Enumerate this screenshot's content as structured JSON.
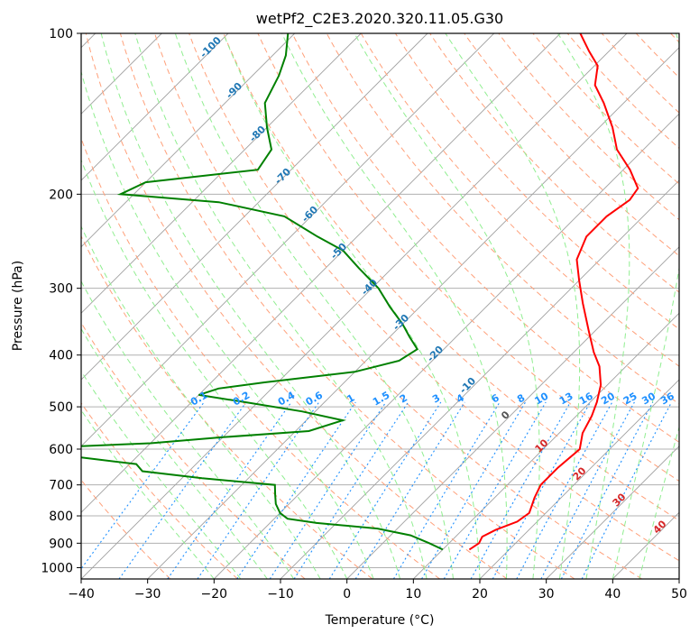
{
  "chart_data": {
    "type": "line",
    "title": "wetPf2_C2E3.2020.320.11.05.G30",
    "xlabel": "Temperature (°C)",
    "ylabel": "Pressure (hPa)",
    "xlim": [
      -40,
      50
    ],
    "ylim": [
      1050,
      100
    ],
    "y_scale": "log",
    "grid": true,
    "x_ticks": [
      -40,
      -30,
      -20,
      -10,
      0,
      10,
      20,
      30,
      40,
      50
    ],
    "y_ticks": [
      100,
      200,
      300,
      400,
      500,
      600,
      700,
      800,
      900,
      1000
    ],
    "skew": 45,
    "series": [
      {
        "color": "#ff0000",
        "points": [
          [
            925,
            14.0
          ],
          [
            900,
            14.5
          ],
          [
            875,
            14.0
          ],
          [
            850,
            15.0
          ],
          [
            820,
            17.0
          ],
          [
            790,
            17.5
          ],
          [
            740,
            16.0
          ],
          [
            700,
            15.0
          ],
          [
            650,
            15.0
          ],
          [
            600,
            15.5
          ],
          [
            560,
            13.5
          ],
          [
            520,
            12.3
          ],
          [
            490,
            11.0
          ],
          [
            455,
            9.0
          ],
          [
            420,
            6.0
          ],
          [
            395,
            3.0
          ],
          [
            360,
            -1.0
          ],
          [
            320,
            -6.0
          ],
          [
            290,
            -10.0
          ],
          [
            265,
            -13.5
          ],
          [
            240,
            -15.5
          ],
          [
            220,
            -15.5
          ],
          [
            205,
            -14.5
          ],
          [
            195,
            -15.0
          ],
          [
            180,
            -19.0
          ],
          [
            165,
            -24.0
          ],
          [
            150,
            -28.0
          ],
          [
            135,
            -33.0
          ],
          [
            125,
            -37.0
          ],
          [
            115,
            -39.5
          ],
          [
            108,
            -43.0
          ],
          [
            100,
            -47.0
          ]
        ]
      },
      {
        "color": "#008000",
        "points": [
          [
            925,
            10.0
          ],
          [
            900,
            7.0
          ],
          [
            870,
            3.0
          ],
          [
            845,
            -3.0
          ],
          [
            825,
            -13.0
          ],
          [
            810,
            -18.0
          ],
          [
            790,
            -20.0
          ],
          [
            760,
            -22.0
          ],
          [
            730,
            -23.5
          ],
          [
            700,
            -25.0
          ],
          [
            680,
            -37.0
          ],
          [
            660,
            -47.0
          ],
          [
            640,
            -49.0
          ],
          [
            600,
            -70.0
          ],
          [
            585,
            -50.0
          ],
          [
            570,
            -40.0
          ],
          [
            555,
            -28.0
          ],
          [
            530,
            -24.5
          ],
          [
            510,
            -32.0
          ],
          [
            490,
            -42.0
          ],
          [
            475,
            -50.0
          ],
          [
            462,
            -48.0
          ],
          [
            450,
            -42.0
          ],
          [
            430,
            -30.0
          ],
          [
            410,
            -25.0
          ],
          [
            390,
            -24.0
          ],
          [
            370,
            -27.0
          ],
          [
            350,
            -30.0
          ],
          [
            325,
            -34.5
          ],
          [
            300,
            -39.0
          ],
          [
            275,
            -45.0
          ],
          [
            255,
            -50.0
          ],
          [
            240,
            -56.0
          ],
          [
            220,
            -64.0
          ],
          [
            207,
            -76.0
          ],
          [
            200,
            -92.0
          ],
          [
            190,
            -90.0
          ],
          [
            180,
            -75.0
          ],
          [
            165,
            -76.0
          ],
          [
            150,
            -80.0
          ],
          [
            135,
            -84.0
          ],
          [
            120,
            -86.0
          ],
          [
            110,
            -88.0
          ],
          [
            100,
            -91.0
          ]
        ]
      }
    ],
    "annotations": {
      "dry_adiabat_labels": [
        "-100",
        "-90",
        "-80",
        "-70",
        "-60",
        "-50",
        "-40",
        "-30",
        "-20",
        "-10",
        "0",
        "10",
        "20",
        "30",
        "40"
      ],
      "mixing_ratio_labels": [
        "0.1",
        "0.2",
        "0.4",
        "0.6",
        "1",
        "1.5",
        "2",
        "3",
        "4",
        "6",
        "8",
        "10",
        "13",
        "16",
        "20",
        "25",
        "30",
        "36"
      ],
      "isotherm_labels": [
        "10",
        "20",
        "30",
        "40"
      ]
    }
  },
  "colors": {
    "temperature": "#ff0000",
    "dewpoint": "#008000",
    "isotherm": "#a0a0a0",
    "dry_adiabat": "#ffa07a",
    "moist_adiabat": "#90ee90",
    "mixing_ratio": "#1e90ff",
    "label_blue": "#1f77b4",
    "label_red": "#d62728",
    "label_gray": "#555555"
  }
}
